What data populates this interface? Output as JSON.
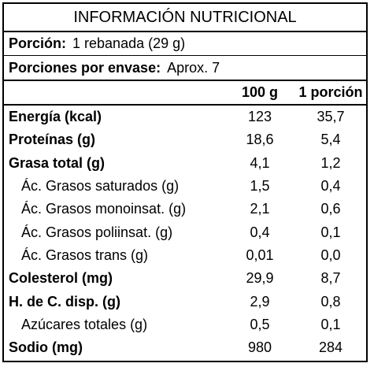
{
  "title": "INFORMACIÓN NUTRICIONAL",
  "portion": {
    "label": "Porción:",
    "value": "1 rebanada (29 g)"
  },
  "portions_per_container": {
    "label": "Porciones por envase:",
    "value": "Aprox. 7"
  },
  "columns": {
    "per100": "100 g",
    "perPortion": "1 porción"
  },
  "rows": [
    {
      "label": "Energía (kcal)",
      "per100": "123",
      "perPortion": "35,7"
    },
    {
      "label": "Proteínas (g)",
      "per100": "18,6",
      "perPortion": "5,4"
    },
    {
      "label": "Grasa total (g)",
      "per100": "4,1",
      "perPortion": "1,2"
    },
    {
      "label": "Ác. Grasos saturados (g)",
      "per100": "1,5",
      "perPortion": "0,4"
    },
    {
      "label": "Ác. Grasos monoinsat. (g)",
      "per100": "2,1",
      "perPortion": "0,6"
    },
    {
      "label": "Ác. Grasos poliinsat. (g)",
      "per100": "0,4",
      "perPortion": "0,1"
    },
    {
      "label": "Ác. Grasos trans (g)",
      "per100": "0,01",
      "perPortion": "0,0"
    },
    {
      "label": "Colesterol (mg)",
      "per100": "29,9",
      "perPortion": "8,7"
    },
    {
      "label": "H. de C. disp. (g)",
      "per100": "2,9",
      "perPortion": "0,8"
    },
    {
      "label": "Azúcares totales (g)",
      "per100": "0,5",
      "perPortion": "0,1"
    },
    {
      "label": "Sodio (mg)",
      "per100": "980",
      "perPortion": "284"
    }
  ]
}
